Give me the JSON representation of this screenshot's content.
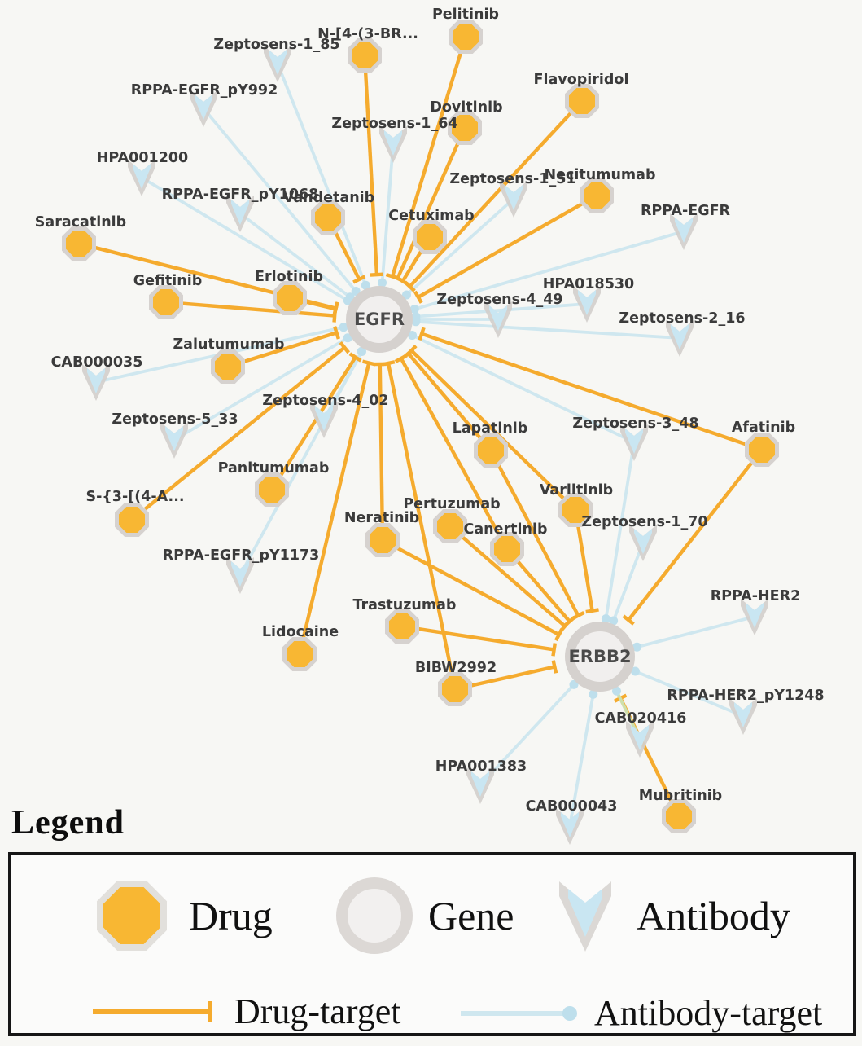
{
  "diagram": {
    "type": "drug-gene-antibody network",
    "gene_count": 2,
    "drug_count": 23,
    "antibody_count": 21
  },
  "colors": {
    "background": "#f7f7f4",
    "drug_fill": "#f8b733",
    "drug_border": "#d6d2cf",
    "drug_edge": "#f5ab2e",
    "antibody_fill": "#c9e6f2",
    "antibody_border": "#d2cfcc",
    "antibody_edge": "#cfe7ef",
    "antibody_edge_dot": "#bedfec",
    "overlap_edge": "#cfe0ab",
    "gene_fill": "#f1efee",
    "gene_ring": "#d5d1ce",
    "label_text": "#3b3b3b"
  },
  "network": {
    "genes": [
      {
        "id": "EGFR",
        "label": "EGFR"
      },
      {
        "id": "ERBB2",
        "label": "ERBB2"
      }
    ],
    "drugs": [
      {
        "id": "Pelitinib",
        "label": "Pelitinib"
      },
      {
        "id": "NBR",
        "label": "N-[4-(3-BR..."
      },
      {
        "id": "Flavopiridol",
        "label": "Flavopiridol"
      },
      {
        "id": "Dovitinib",
        "label": "Dovitinib"
      },
      {
        "id": "Necitumumab",
        "label": "Necitumumab"
      },
      {
        "id": "Vandetanib",
        "label": "Vandetanib"
      },
      {
        "id": "Cetuximab",
        "label": "Cetuximab"
      },
      {
        "id": "Saracatinib",
        "label": "Saracatinib"
      },
      {
        "id": "Gefitinib",
        "label": "Gefitinib"
      },
      {
        "id": "Erlotinib",
        "label": "Erlotinib"
      },
      {
        "id": "Zalutumumab",
        "label": "Zalutumumab"
      },
      {
        "id": "Panitumumab",
        "label": "Panitumumab"
      },
      {
        "id": "S34A",
        "label": "S-{3-[(4-A..."
      },
      {
        "id": "Lapatinib",
        "label": "Lapatinib"
      },
      {
        "id": "Afatinib",
        "label": "Afatinib"
      },
      {
        "id": "Varlitinib",
        "label": "Varlitinib"
      },
      {
        "id": "Pertuzumab",
        "label": "Pertuzumab"
      },
      {
        "id": "Neratinib",
        "label": "Neratinib"
      },
      {
        "id": "Canertinib",
        "label": "Canertinib"
      },
      {
        "id": "Trastuzumab",
        "label": "Trastuzumab"
      },
      {
        "id": "Lidocaine",
        "label": "Lidocaine"
      },
      {
        "id": "BIBW2992",
        "label": "BIBW2992"
      },
      {
        "id": "Mubritinib",
        "label": "Mubritinib"
      }
    ],
    "antibodies": [
      {
        "id": "Zeptosens-1_85",
        "label": "Zeptosens-1_85"
      },
      {
        "id": "RPPA-EGFR_pY992",
        "label": "RPPA-EGFR_pY992"
      },
      {
        "id": "HPA001200",
        "label": "HPA001200"
      },
      {
        "id": "RPPA-EGFR_pY1068",
        "label": "RPPA-EGFR_pY1068"
      },
      {
        "id": "Zeptosens-1_64",
        "label": "Zeptosens-1_64"
      },
      {
        "id": "Zeptosens-1_51",
        "label": "Zeptosens-1_51"
      },
      {
        "id": "RPPA-EGFR",
        "label": "RPPA-EGFR"
      },
      {
        "id": "Zeptosens-4_49",
        "label": "Zeptosens-4_49"
      },
      {
        "id": "HPA018530",
        "label": "HPA018530"
      },
      {
        "id": "Zeptosens-2_16",
        "label": "Zeptosens-2_16"
      },
      {
        "id": "CAB000035",
        "label": "CAB000035"
      },
      {
        "id": "Zeptosens-5_33",
        "label": "Zeptosens-5_33"
      },
      {
        "id": "Zeptosens-4_02",
        "label": "Zeptosens-4_02"
      },
      {
        "id": "RPPA-EGFR_pY1173",
        "label": "RPPA-EGFR_pY1173"
      },
      {
        "id": "Zeptosens-3_48",
        "label": "Zeptosens-3_48"
      },
      {
        "id": "Zeptosens-1_70",
        "label": "Zeptosens-1_70"
      },
      {
        "id": "RPPA-HER2",
        "label": "RPPA-HER2"
      },
      {
        "id": "RPPA-HER2_pY1248",
        "label": "RPPA-HER2_pY1248"
      },
      {
        "id": "CAB020416",
        "label": "CAB020416"
      },
      {
        "id": "HPA001383",
        "label": "HPA001383"
      },
      {
        "id": "CAB000043",
        "label": "CAB000043"
      }
    ],
    "edges": [
      {
        "source": "EGFR",
        "target": "Pelitinib",
        "type": "drug-target"
      },
      {
        "source": "EGFR",
        "target": "NBR",
        "type": "drug-target"
      },
      {
        "source": "EGFR",
        "target": "Flavopiridol",
        "type": "drug-target"
      },
      {
        "source": "EGFR",
        "target": "Dovitinib",
        "type": "drug-target"
      },
      {
        "source": "EGFR",
        "target": "Necitumumab",
        "type": "drug-target"
      },
      {
        "source": "EGFR",
        "target": "Vandetanib",
        "type": "drug-target"
      },
      {
        "source": "EGFR",
        "target": "Cetuximab",
        "type": "drug-target"
      },
      {
        "source": "EGFR",
        "target": "Saracatinib",
        "type": "drug-target"
      },
      {
        "source": "EGFR",
        "target": "Gefitinib",
        "type": "drug-target"
      },
      {
        "source": "EGFR",
        "target": "Erlotinib",
        "type": "drug-target"
      },
      {
        "source": "EGFR",
        "target": "Zalutumumab",
        "type": "drug-target"
      },
      {
        "source": "EGFR",
        "target": "Panitumumab",
        "type": "drug-target"
      },
      {
        "source": "EGFR",
        "target": "S34A",
        "type": "drug-target"
      },
      {
        "source": "EGFR",
        "target": "Lapatinib",
        "type": "drug-target"
      },
      {
        "source": "EGFR",
        "target": "Afatinib",
        "type": "drug-target"
      },
      {
        "source": "EGFR",
        "target": "Varlitinib",
        "type": "drug-target"
      },
      {
        "source": "EGFR",
        "target": "Neratinib",
        "type": "drug-target"
      },
      {
        "source": "EGFR",
        "target": "Canertinib",
        "type": "drug-target"
      },
      {
        "source": "EGFR",
        "target": "Lidocaine",
        "type": "drug-target"
      },
      {
        "source": "EGFR",
        "target": "BIBW2992",
        "type": "drug-target"
      },
      {
        "source": "ERBB2",
        "target": "Lapatinib",
        "type": "drug-target"
      },
      {
        "source": "ERBB2",
        "target": "Afatinib",
        "type": "drug-target"
      },
      {
        "source": "ERBB2",
        "target": "Varlitinib",
        "type": "drug-target"
      },
      {
        "source": "ERBB2",
        "target": "Pertuzumab",
        "type": "drug-target"
      },
      {
        "source": "ERBB2",
        "target": "Neratinib",
        "type": "drug-target"
      },
      {
        "source": "ERBB2",
        "target": "Canertinib",
        "type": "drug-target"
      },
      {
        "source": "ERBB2",
        "target": "Trastuzumab",
        "type": "drug-target"
      },
      {
        "source": "ERBB2",
        "target": "BIBW2992",
        "type": "drug-target"
      },
      {
        "source": "ERBB2",
        "target": "Mubritinib",
        "type": "drug-target"
      },
      {
        "source": "EGFR",
        "target": "Zeptosens-1_85",
        "type": "antibody-target"
      },
      {
        "source": "EGFR",
        "target": "RPPA-EGFR_pY992",
        "type": "antibody-target"
      },
      {
        "source": "EGFR",
        "target": "HPA001200",
        "type": "antibody-target"
      },
      {
        "source": "EGFR",
        "target": "RPPA-EGFR_pY1068",
        "type": "antibody-target"
      },
      {
        "source": "EGFR",
        "target": "Zeptosens-1_64",
        "type": "antibody-target"
      },
      {
        "source": "EGFR",
        "target": "Zeptosens-1_51",
        "type": "antibody-target"
      },
      {
        "source": "EGFR",
        "target": "RPPA-EGFR",
        "type": "antibody-target"
      },
      {
        "source": "EGFR",
        "target": "Zeptosens-4_49",
        "type": "antibody-target"
      },
      {
        "source": "EGFR",
        "target": "HPA018530",
        "type": "antibody-target"
      },
      {
        "source": "EGFR",
        "target": "Zeptosens-2_16",
        "type": "antibody-target"
      },
      {
        "source": "EGFR",
        "target": "CAB000035",
        "type": "antibody-target"
      },
      {
        "source": "EGFR",
        "target": "Zeptosens-5_33",
        "type": "antibody-target"
      },
      {
        "source": "EGFR",
        "target": "Zeptosens-4_02",
        "type": "antibody-target"
      },
      {
        "source": "EGFR",
        "target": "RPPA-EGFR_pY1173",
        "type": "antibody-target"
      },
      {
        "source": "EGFR",
        "target": "Zeptosens-3_48",
        "type": "antibody-target"
      },
      {
        "source": "ERBB2",
        "target": "Zeptosens-3_48",
        "type": "antibody-target"
      },
      {
        "source": "ERBB2",
        "target": "Zeptosens-1_70",
        "type": "antibody-target"
      },
      {
        "source": "ERBB2",
        "target": "RPPA-HER2",
        "type": "antibody-target"
      },
      {
        "source": "ERBB2",
        "target": "RPPA-HER2_pY1248",
        "type": "antibody-target"
      },
      {
        "source": "ERBB2",
        "target": "CAB020416",
        "type": "antibody-target"
      },
      {
        "source": "ERBB2",
        "target": "HPA001383",
        "type": "antibody-target"
      },
      {
        "source": "ERBB2",
        "target": "CAB000043",
        "type": "antibody-target"
      }
    ]
  },
  "legend": {
    "title": "Legend",
    "drug_label": "Drug",
    "gene_label": "Gene",
    "antibody_label": "Antibody",
    "drug_target_label": "Drug-target",
    "antibody_target_label": "Antibody-target"
  }
}
